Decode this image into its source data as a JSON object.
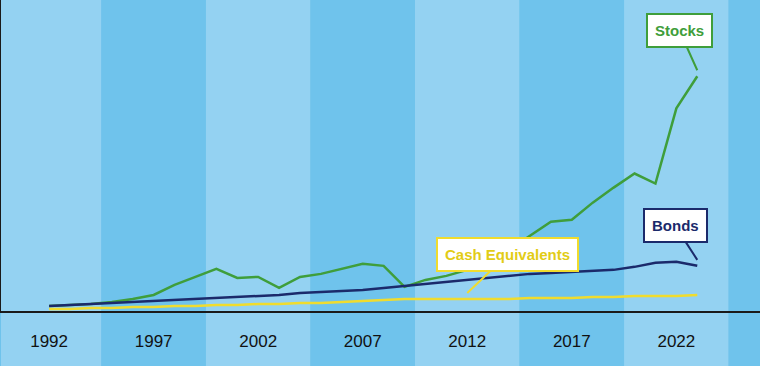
{
  "chart_data": {
    "type": "line",
    "x": [
      1992,
      1993,
      1994,
      1995,
      1996,
      1997,
      1998,
      1999,
      2000,
      2001,
      2002,
      2003,
      2004,
      2005,
      2006,
      2007,
      2008,
      2009,
      2010,
      2011,
      2012,
      2013,
      2014,
      2015,
      2016,
      2017,
      2018,
      2019,
      2020,
      2021,
      2022,
      2023
    ],
    "series": [
      {
        "name": "Stocks",
        "color": "#3f9e3b",
        "values": [
          5,
          6,
          7,
          9,
          12,
          16,
          26,
          34,
          42,
          33,
          34,
          23,
          34,
          37,
          42,
          47,
          45,
          24,
          31,
          35,
          41,
          49,
          61,
          75,
          89,
          91,
          108,
          123,
          137,
          127,
          202,
          234
        ]
      },
      {
        "name": "Bonds",
        "color": "#1b2a6b",
        "values": [
          5,
          6,
          7,
          8,
          9,
          10,
          11,
          12,
          13,
          14,
          15,
          16,
          18,
          19,
          20,
          21,
          23,
          25,
          27,
          29,
          31,
          33,
          35,
          37,
          38,
          39,
          40,
          41,
          44,
          48,
          49,
          45
        ]
      },
      {
        "name": "Cash Equivalents",
        "color": "#f0dc2e",
        "values": [
          2,
          2,
          3,
          3,
          4,
          4,
          5,
          5,
          6,
          6,
          7,
          7,
          8,
          8,
          9,
          10,
          11,
          12,
          12,
          12,
          12,
          12,
          12,
          13,
          13,
          13,
          14,
          14,
          15,
          15,
          15,
          16
        ]
      }
    ],
    "xlim": [
      1989.7,
      2026
    ],
    "xticks": [
      1992,
      1997,
      2002,
      2007,
      2012,
      2017,
      2022
    ],
    "ylim": [
      0,
      310
    ],
    "tick_labels": "x",
    "grid": false
  }
}
